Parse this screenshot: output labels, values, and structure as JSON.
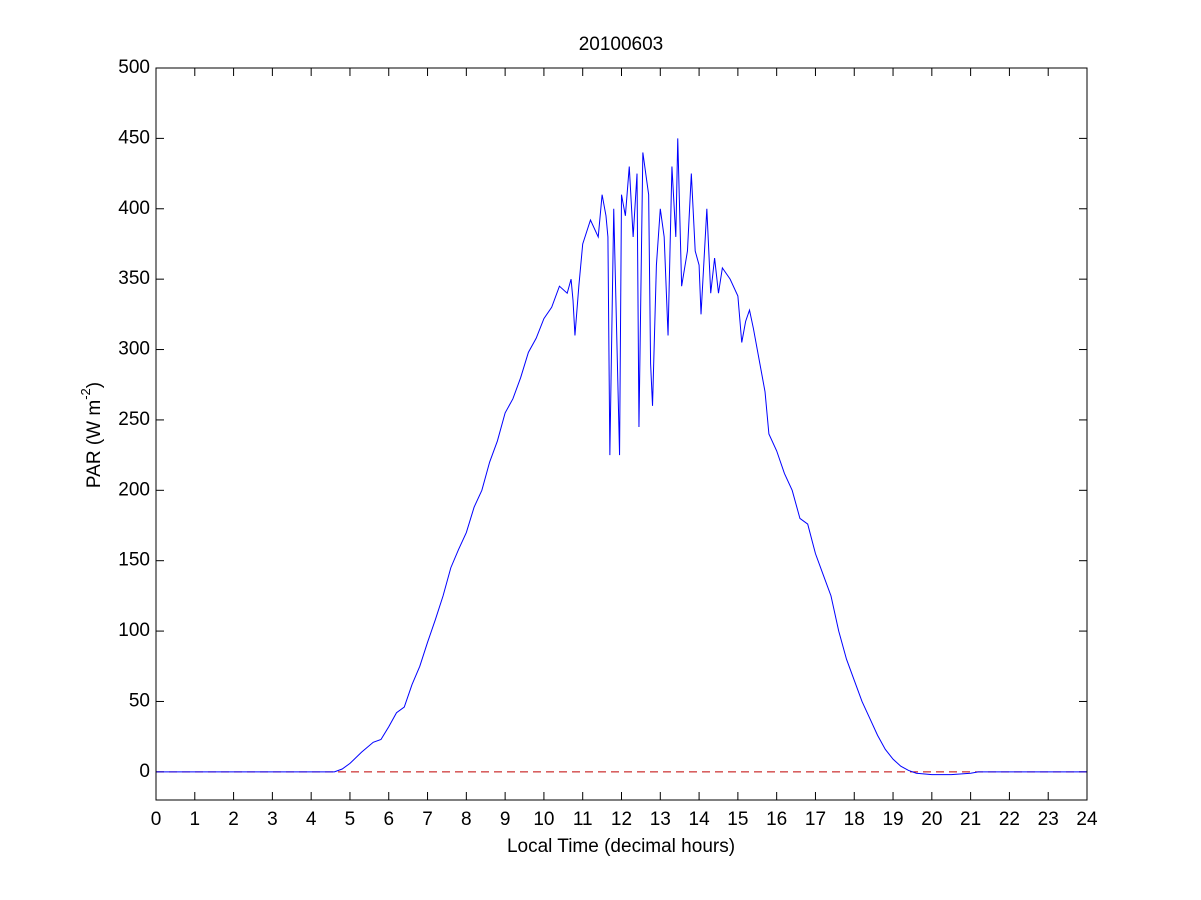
{
  "chart_data": {
    "type": "line",
    "title": "20100603",
    "xlabel": "Local Time (decimal hours)",
    "ylabel_parts": [
      "PAR (W m",
      "-2",
      ")"
    ],
    "xlim": [
      0,
      24
    ],
    "ylim": [
      -20,
      500
    ],
    "xticks": [
      0,
      1,
      2,
      3,
      4,
      5,
      6,
      7,
      8,
      9,
      10,
      11,
      12,
      13,
      14,
      15,
      16,
      17,
      18,
      19,
      20,
      21,
      22,
      23,
      24
    ],
    "yticks": [
      0,
      50,
      100,
      150,
      200,
      250,
      300,
      350,
      400,
      450,
      500
    ],
    "grid": false,
    "reference_line": {
      "value": 0,
      "color": "#c00000",
      "style": "dashed"
    },
    "series": [
      {
        "color": "#0000ff",
        "x": [
          0,
          4.6,
          4.8,
          5.0,
          5.3,
          5.6,
          5.8,
          6.0,
          6.2,
          6.4,
          6.6,
          6.8,
          7.0,
          7.2,
          7.4,
          7.6,
          7.8,
          8.0,
          8.2,
          8.4,
          8.6,
          8.8,
          9.0,
          9.2,
          9.4,
          9.6,
          9.8,
          10.0,
          10.2,
          10.4,
          10.6,
          10.7,
          10.75,
          10.8,
          10.9,
          11.0,
          11.2,
          11.4,
          11.5,
          11.6,
          11.65,
          11.7,
          11.8,
          11.95,
          12.0,
          12.1,
          12.2,
          12.3,
          12.4,
          12.45,
          12.55,
          12.7,
          12.75,
          12.8,
          12.9,
          13.0,
          13.1,
          13.2,
          13.3,
          13.4,
          13.45,
          13.55,
          13.7,
          13.8,
          13.9,
          14.0,
          14.05,
          14.2,
          14.3,
          14.4,
          14.5,
          14.6,
          14.8,
          15.0,
          15.1,
          15.2,
          15.3,
          15.4,
          15.5,
          15.6,
          15.7,
          15.8,
          16.0,
          16.2,
          16.4,
          16.6,
          16.8,
          17.0,
          17.2,
          17.4,
          17.6,
          17.8,
          18.0,
          18.2,
          18.4,
          18.6,
          18.8,
          19.0,
          19.2,
          19.4,
          19.6,
          20.0,
          20.5,
          21.0,
          21.2,
          24
        ],
        "values": [
          0,
          0,
          2,
          6,
          14,
          21,
          23,
          32,
          42,
          46,
          62,
          75,
          92,
          108,
          125,
          145,
          158,
          170,
          188,
          200,
          220,
          235,
          255,
          265,
          280,
          298,
          308,
          322,
          330,
          345,
          340,
          350,
          335,
          310,
          345,
          375,
          392,
          380,
          410,
          395,
          380,
          225,
          400,
          225,
          410,
          395,
          430,
          380,
          425,
          245,
          440,
          410,
          290,
          260,
          360,
          400,
          380,
          310,
          430,
          380,
          450,
          345,
          370,
          425,
          370,
          360,
          325,
          400,
          340,
          365,
          340,
          358,
          350,
          338,
          305,
          320,
          328,
          315,
          300,
          285,
          270,
          240,
          228,
          212,
          200,
          180,
          176,
          155,
          140,
          125,
          100,
          80,
          65,
          50,
          38,
          26,
          16,
          9,
          4,
          1,
          -1,
          -2,
          -2,
          -1,
          0,
          0
        ]
      }
    ]
  }
}
